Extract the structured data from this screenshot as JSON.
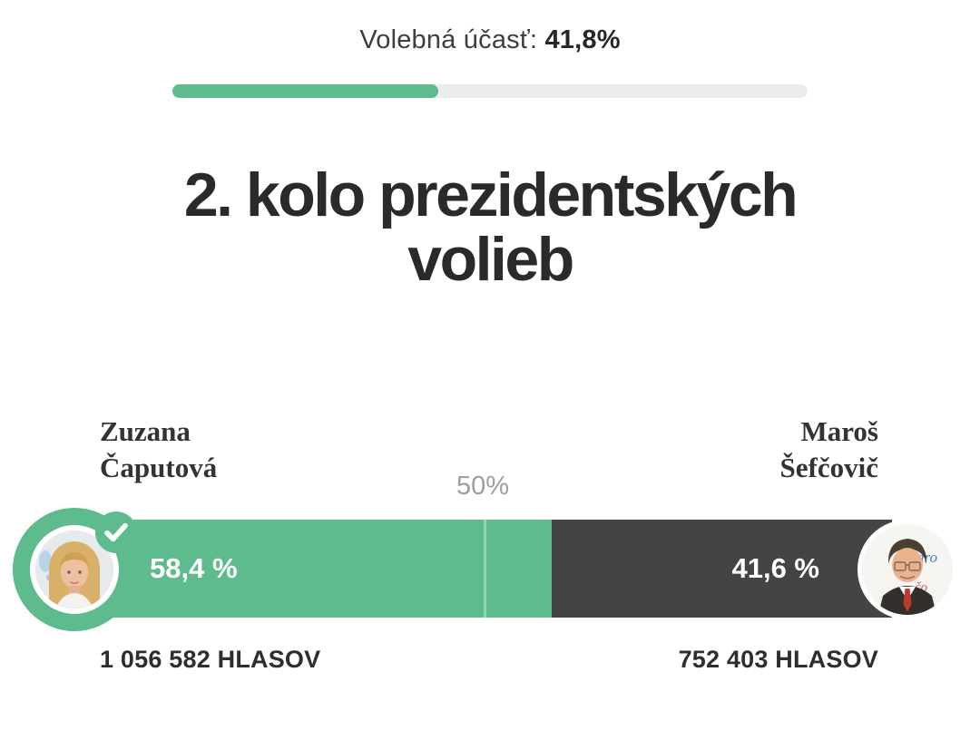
{
  "turnout": {
    "label": "Volebná účasť:",
    "value": "41,8%",
    "percent": 41.8
  },
  "title": "2. kolo prezidentských volieb",
  "midline_label": "50%",
  "colors": {
    "green": "#5ebb8e",
    "dark": "#454345",
    "track": "#ececec"
  },
  "candidates": [
    {
      "first_name": "Zuzana",
      "last_name": "Čaputová",
      "percent": 58.4,
      "percent_label": "58,4 %",
      "votes": 1056582,
      "votes_label": "1 056 582 HLASOV",
      "color": "#5ebb8e",
      "winner": true
    },
    {
      "first_name": "Maroš",
      "last_name": "Šefčovič",
      "percent": 41.6,
      "percent_label": "41,6 %",
      "votes": 752403,
      "votes_label": "752 403 HLASOV",
      "color": "#454345",
      "winner": false
    }
  ],
  "chart_data": {
    "type": "bar",
    "title": "2. kolo prezidentských volieb",
    "subtitle": "Volebná účasť: 41,8%",
    "turnout_percent": 41.8,
    "categories": [
      "Zuzana Čaputová",
      "Maroš Šefčovič"
    ],
    "values": [
      58.4,
      41.6
    ],
    "value_labels": [
      "58,4 %",
      "41,6 %"
    ],
    "votes": [
      1056582,
      752403
    ],
    "votes_labels": [
      "1 056 582 HLASOV",
      "752 403 HLASOV"
    ],
    "unit": "%",
    "midline": 50,
    "midline_label": "50%",
    "colors": [
      "#5ebb8e",
      "#454345"
    ],
    "winner": "Zuzana Čaputová",
    "orientation": "horizontal-stacked",
    "xlim": [
      0,
      100
    ]
  }
}
